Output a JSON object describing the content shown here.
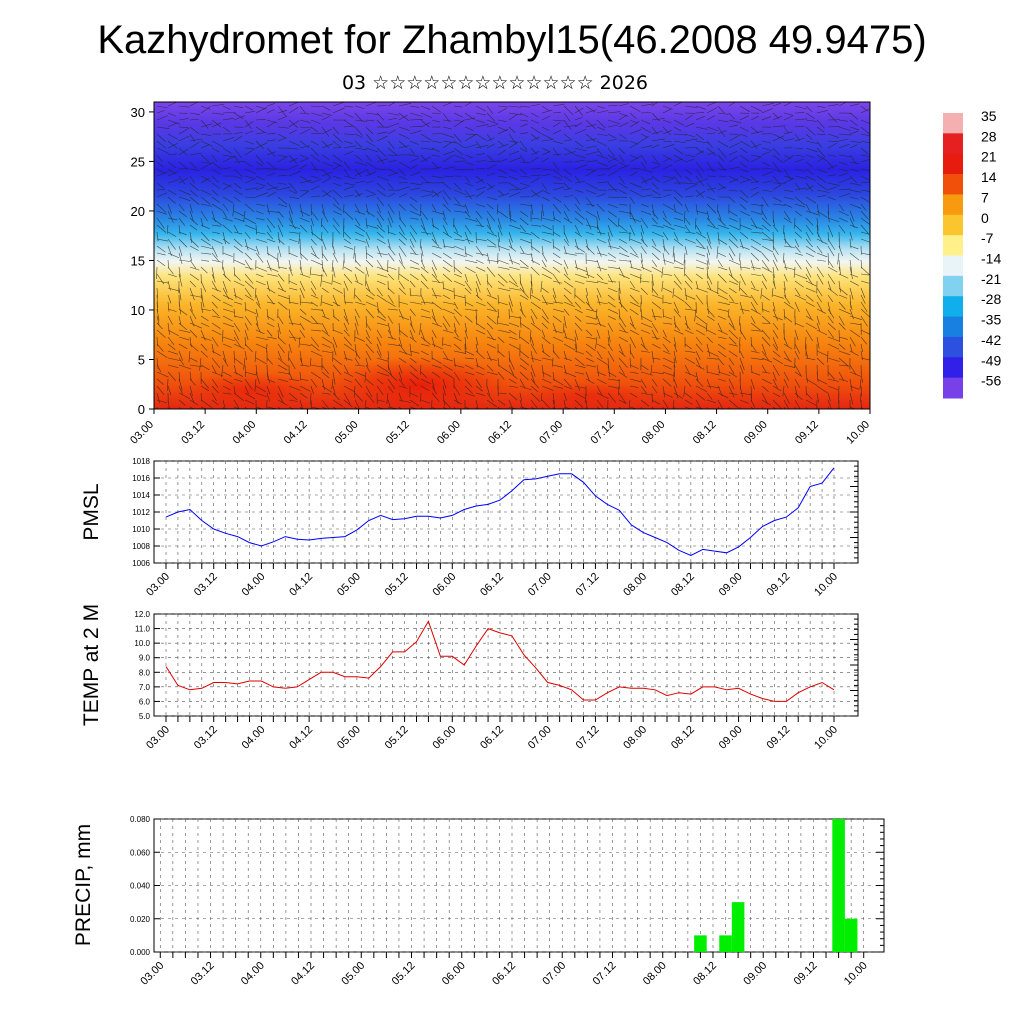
{
  "header": {
    "title": "Kazhydromet for Zhambyl15(46.2008 49.9475)",
    "subtitle": "03 ☆☆☆☆☆☆☆☆☆☆☆☆☆ 2026"
  },
  "time_labels": [
    "03.00",
    "03.12",
    "04.00",
    "04.12",
    "05.00",
    "05.12",
    "06.00",
    "06.12",
    "07.00",
    "07.12",
    "08.00",
    "08.12",
    "09.00",
    "09.12",
    "10.00"
  ],
  "colorbar": {
    "labels": [
      "35",
      "28",
      "21",
      "14",
      "7",
      "0",
      "-7",
      "-14",
      "-21",
      "-28",
      "-35",
      "-42",
      "-49",
      "-56"
    ]
  },
  "chart_data": [
    {
      "type": "heatmap",
      "name": "temperature-wind cross section",
      "y_ticks": [
        "0",
        "5",
        "10",
        "15",
        "20",
        "25",
        "30"
      ],
      "ylim": [
        0,
        31
      ],
      "colorscale_stops": [
        {
          "value": 35,
          "color": "#f4b0b0"
        },
        {
          "value": 28,
          "color": "#e62020"
        },
        {
          "value": 21,
          "color": "#e81c0e"
        },
        {
          "value": 14,
          "color": "#f0500a"
        },
        {
          "value": 7,
          "color": "#f79a10"
        },
        {
          "value": 0,
          "color": "#fbc530"
        },
        {
          "value": -7,
          "color": "#fff08a"
        },
        {
          "value": -14,
          "color": "#e8f4f8"
        },
        {
          "value": -21,
          "color": "#80d2f0"
        },
        {
          "value": -28,
          "color": "#10aeea"
        },
        {
          "value": -35,
          "color": "#1880e0"
        },
        {
          "value": -42,
          "color": "#2c50e0"
        },
        {
          "value": -49,
          "color": "#3020e8"
        },
        {
          "value": -56,
          "color": "#7840e8"
        }
      ]
    },
    {
      "type": "line",
      "name": "PMSL",
      "ylabel": "PMSL",
      "ylim": [
        1006,
        1018
      ],
      "y_ticks": [
        "1006",
        "1008",
        "1010",
        "1012",
        "1014",
        "1016",
        "1018"
      ],
      "color": "#0000ff",
      "values": [
        1011.4,
        1012.0,
        1012.3,
        1011.0,
        1010.0,
        1009.5,
        1009.1,
        1008.4,
        1008.0,
        1008.5,
        1009.1,
        1008.8,
        1008.7,
        1008.9,
        1009.0,
        1009.1,
        1009.9,
        1011.0,
        1011.6,
        1011.1,
        1011.2,
        1011.5,
        1011.5,
        1011.3,
        1011.6,
        1012.3,
        1012.7,
        1012.9,
        1013.4,
        1014.5,
        1015.8,
        1015.9,
        1016.2,
        1016.5,
        1016.5,
        1015.5,
        1013.9,
        1012.9,
        1012.2,
        1010.5,
        1009.6,
        1009.0,
        1008.4,
        1007.5,
        1006.9,
        1007.6,
        1007.4,
        1007.2,
        1007.9,
        1009.0,
        1010.3,
        1011.0,
        1011.4,
        1012.5,
        1015.0,
        1015.4,
        1017.2
      ]
    },
    {
      "type": "line",
      "name": "TEMP at 2 M",
      "ylabel": "TEMP at 2 M",
      "ylim": [
        5,
        12
      ],
      "y_ticks": [
        "5.0",
        "6.0",
        "7.0",
        "8.0",
        "9.0",
        "10.0",
        "11.0",
        "12.0"
      ],
      "color": "#e00000",
      "values": [
        8.4,
        7.1,
        6.8,
        6.9,
        7.3,
        7.3,
        7.2,
        7.4,
        7.4,
        7.0,
        6.9,
        7.0,
        7.5,
        8.0,
        8.0,
        7.7,
        7.7,
        7.6,
        8.4,
        9.4,
        9.4,
        10.1,
        11.5,
        9.1,
        9.1,
        8.5,
        9.8,
        11.0,
        10.7,
        10.5,
        9.2,
        8.3,
        7.3,
        7.1,
        6.8,
        6.1,
        6.1,
        6.6,
        7.0,
        6.9,
        6.9,
        6.8,
        6.4,
        6.6,
        6.5,
        7.0,
        7.0,
        6.8,
        6.9,
        6.5,
        6.2,
        6.0,
        6.0,
        6.6,
        7.0,
        7.3,
        6.8
      ]
    },
    {
      "type": "bar",
      "name": "precipitation",
      "ylabel": "PRECIP, mm",
      "ylim": [
        0,
        0.08
      ],
      "y_ticks": [
        "0.000",
        "0.020",
        "0.040",
        "0.060",
        "0.080"
      ],
      "color": "#00ee00",
      "bars": [
        {
          "x": 43,
          "value": 0.01
        },
        {
          "x": 45,
          "value": 0.01
        },
        {
          "x": 46,
          "value": 0.03
        },
        {
          "x": 54,
          "value": 0.08
        },
        {
          "x": 55,
          "value": 0.02
        }
      ]
    }
  ]
}
